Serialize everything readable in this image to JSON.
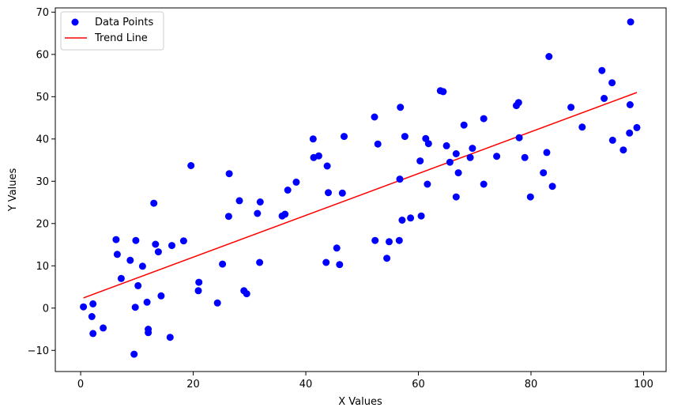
{
  "chart_data": {
    "type": "scatter",
    "title": "",
    "xlabel": "X Values",
    "ylabel": "Y Values",
    "xlim": [
      -4.5,
      104
    ],
    "ylim": [
      -15,
      71
    ],
    "xticks": [
      0,
      20,
      40,
      60,
      80,
      100
    ],
    "yticks": [
      -10,
      0,
      10,
      20,
      30,
      40,
      50,
      60,
      70
    ],
    "grid": false,
    "legend": {
      "placement": "top-left",
      "entries": [
        "Data Points",
        "Trend Line"
      ]
    },
    "colors": {
      "points": "#0000ff",
      "trend": "#ff0000"
    },
    "series": [
      {
        "name": "Data Points",
        "kind": "scatter",
        "points": [
          [
            0.5,
            0.3
          ],
          [
            2.0,
            -2.0
          ],
          [
            2.2,
            1.0
          ],
          [
            2.2,
            -6.0
          ],
          [
            4.0,
            -4.7
          ],
          [
            6.3,
            16.2
          ],
          [
            6.5,
            12.7
          ],
          [
            7.2,
            7.0
          ],
          [
            8.8,
            11.3
          ],
          [
            9.5,
            -10.9
          ],
          [
            9.7,
            0.2
          ],
          [
            9.8,
            16.0
          ],
          [
            10.2,
            5.3
          ],
          [
            11.0,
            9.9
          ],
          [
            11.8,
            1.4
          ],
          [
            12.0,
            -5.0
          ],
          [
            12.0,
            -5.8
          ],
          [
            13.0,
            24.8
          ],
          [
            13.3,
            15.1
          ],
          [
            13.8,
            13.3
          ],
          [
            14.3,
            2.9
          ],
          [
            15.9,
            -6.9
          ],
          [
            16.2,
            14.8
          ],
          [
            18.3,
            15.9
          ],
          [
            19.6,
            33.7
          ],
          [
            20.9,
            4.1
          ],
          [
            21.0,
            6.1
          ],
          [
            24.3,
            1.2
          ],
          [
            25.2,
            10.4
          ],
          [
            26.3,
            21.7
          ],
          [
            26.4,
            31.8
          ],
          [
            28.2,
            25.4
          ],
          [
            29.0,
            4.1
          ],
          [
            29.5,
            3.4
          ],
          [
            31.4,
            22.4
          ],
          [
            31.8,
            10.8
          ],
          [
            31.9,
            25.1
          ],
          [
            35.8,
            21.8
          ],
          [
            36.3,
            22.2
          ],
          [
            36.8,
            27.9
          ],
          [
            38.3,
            29.8
          ],
          [
            41.3,
            40.0
          ],
          [
            41.4,
            35.6
          ],
          [
            42.3,
            36.0
          ],
          [
            43.6,
            10.8
          ],
          [
            43.8,
            33.6
          ],
          [
            44.0,
            27.3
          ],
          [
            45.5,
            14.2
          ],
          [
            46.0,
            10.3
          ],
          [
            46.5,
            27.2
          ],
          [
            46.8,
            40.6
          ],
          [
            52.2,
            45.2
          ],
          [
            52.3,
            16.0
          ],
          [
            52.8,
            38.8
          ],
          [
            54.4,
            11.8
          ],
          [
            54.8,
            15.7
          ],
          [
            56.6,
            16.0
          ],
          [
            56.7,
            30.5
          ],
          [
            56.8,
            47.5
          ],
          [
            57.1,
            20.8
          ],
          [
            57.6,
            40.6
          ],
          [
            58.6,
            21.3
          ],
          [
            60.3,
            34.8
          ],
          [
            60.5,
            21.8
          ],
          [
            61.3,
            40.1
          ],
          [
            61.6,
            29.3
          ],
          [
            61.8,
            38.9
          ],
          [
            63.9,
            51.4
          ],
          [
            64.4,
            51.2
          ],
          [
            65.0,
            38.4
          ],
          [
            65.6,
            34.5
          ],
          [
            66.7,
            26.3
          ],
          [
            66.7,
            36.5
          ],
          [
            67.1,
            32.0
          ],
          [
            68.1,
            43.3
          ],
          [
            69.2,
            35.6
          ],
          [
            69.6,
            37.8
          ],
          [
            71.6,
            44.8
          ],
          [
            71.6,
            29.3
          ],
          [
            73.9,
            35.9
          ],
          [
            77.4,
            47.9
          ],
          [
            77.8,
            48.6
          ],
          [
            77.9,
            40.3
          ],
          [
            78.9,
            35.6
          ],
          [
            79.9,
            26.3
          ],
          [
            82.2,
            32.0
          ],
          [
            82.8,
            36.8
          ],
          [
            83.2,
            59.5
          ],
          [
            83.8,
            28.8
          ],
          [
            87.1,
            47.5
          ],
          [
            89.1,
            42.8
          ],
          [
            92.6,
            56.2
          ],
          [
            93.0,
            49.6
          ],
          [
            94.4,
            53.3
          ],
          [
            94.5,
            39.7
          ],
          [
            96.4,
            37.4
          ],
          [
            97.5,
            41.4
          ],
          [
            97.6,
            48.1
          ],
          [
            97.7,
            67.7
          ],
          [
            98.8,
            42.7
          ]
        ]
      },
      {
        "name": "Trend Line",
        "kind": "line",
        "points": [
          [
            0.5,
            2.4
          ],
          [
            98.8,
            51.0
          ]
        ]
      }
    ]
  }
}
